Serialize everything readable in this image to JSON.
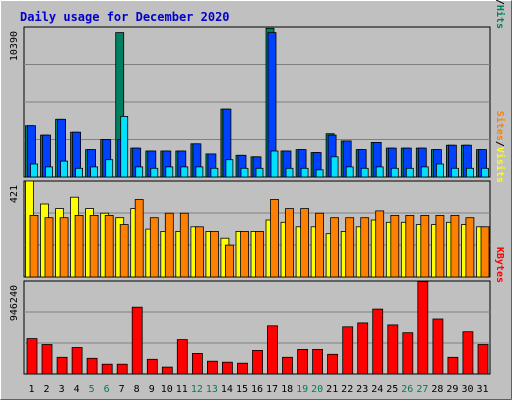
{
  "chart_data": {
    "type": "bar",
    "title": "Daily usage for December 2020",
    "categories": [
      "1",
      "2",
      "3",
      "4",
      "5",
      "6",
      "7",
      "8",
      "9",
      "10",
      "11",
      "12",
      "13",
      "14",
      "15",
      "16",
      "17",
      "18",
      "19",
      "20",
      "21",
      "22",
      "23",
      "24",
      "25",
      "26",
      "27",
      "28",
      "29",
      "30",
      "31"
    ],
    "weekend_days": [
      "5",
      "6",
      "12",
      "13",
      "19",
      "20",
      "26",
      "27"
    ],
    "colors": {
      "title": "#0000cc",
      "frame_bg": "#c0c0c0",
      "plot_bg": "#c0c0c0",
      "grid": "#808080",
      "weekday_label": "#000000",
      "weekend_label": "#007f4f",
      "hits": "#008060",
      "files": "#0040ff",
      "pages": "#00e0ff",
      "visits": "#ffff00",
      "sites": "#ff8000",
      "kbytes": "#ff0000"
    },
    "panels": [
      {
        "id": "hits-files-pages",
        "max_label": "10390",
        "ymax": 10390,
        "legend": [
          "Pages",
          "/",
          "Files",
          "/",
          "Hits"
        ],
        "legend_colors": [
          "#00e0ff",
          "#000000",
          "#0040ff",
          "#000000",
          "#008060"
        ],
        "series": [
          {
            "name": "Hits",
            "color": "#008060",
            "values": [
              3550,
              2900,
              4000,
              3100,
              1900,
              2600,
              10000,
              2000,
              1800,
              1800,
              1800,
              2300,
              1600,
              4700,
              1500,
              1400,
              10300,
              1800,
              1900,
              1700,
              3000,
              2500,
              1900,
              2400,
              2000,
              2000,
              2000,
              1900,
              2200,
              2200,
              1900
            ]
          },
          {
            "name": "Files",
            "color": "#0040ff",
            "values": [
              3550,
              2900,
              4000,
              3100,
              1900,
              2600,
              2600,
              2000,
              1800,
              1800,
              1800,
              2300,
              1600,
              4700,
              1500,
              1400,
              10000,
              1800,
              1900,
              1700,
              2900,
              2500,
              1900,
              2400,
              2000,
              2000,
              2000,
              1900,
              2200,
              2200,
              1900
            ]
          },
          {
            "name": "Pages",
            "color": "#00e0ff",
            "values": [
              900,
              700,
              1100,
              600,
              700,
              1200,
              4200,
              700,
              600,
              700,
              700,
              700,
              600,
              1200,
              600,
              600,
              1800,
              600,
              600,
              500,
              1400,
              700,
              600,
              700,
              600,
              600,
              700,
              900,
              600,
              600,
              600
            ]
          }
        ]
      },
      {
        "id": "sites-visits",
        "max_label": "421",
        "ymax": 421,
        "legend": [
          "Sites",
          "/",
          "Visits"
        ],
        "legend_colors": [
          "#ff8000",
          "#000000",
          "#ffff00"
        ],
        "series": [
          {
            "name": "Visits",
            "color": "#ffff00",
            "values": [
              421,
              320,
              300,
              350,
              300,
              280,
              260,
              300,
              210,
              200,
              200,
              220,
              200,
              170,
              200,
              200,
              250,
              240,
              220,
              220,
              190,
              200,
              220,
              250,
              240,
              240,
              230,
              230,
              240,
              230,
              220
            ]
          },
          {
            "name": "Sites",
            "color": "#ff8000",
            "values": [
              270,
              260,
              260,
              270,
              270,
              270,
              230,
              340,
              260,
              280,
              280,
              220,
              200,
              140,
              200,
              200,
              340,
              300,
              300,
              280,
              260,
              260,
              260,
              290,
              270,
              270,
              270,
              270,
              270,
              260,
              220
            ]
          }
        ]
      },
      {
        "id": "kbytes",
        "max_label": "946240",
        "ymax": 946240,
        "legend": [
          "KBytes"
        ],
        "legend_colors": [
          "#ff0000"
        ],
        "series": [
          {
            "name": "KBytes",
            "color": "#ff0000",
            "values": [
              360000,
              300000,
              170000,
              270000,
              160000,
              100000,
              100000,
              680000,
              150000,
              70000,
              350000,
              210000,
              130000,
              120000,
              110000,
              240000,
              490000,
              170000,
              250000,
              250000,
              200000,
              480000,
              520000,
              660000,
              500000,
              420000,
              940000,
              560000,
              170000,
              430000,
              300000
            ]
          }
        ]
      }
    ]
  }
}
